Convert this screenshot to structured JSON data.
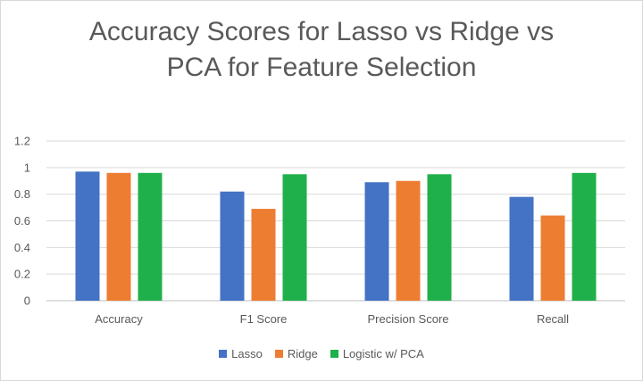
{
  "chart_data": {
    "type": "bar",
    "title_lines": [
      "Accuracy Scores for Lasso vs Ridge vs",
      "PCA for Feature Selection"
    ],
    "categories": [
      "Accuracy",
      "F1 Score",
      "Precision Score",
      "Recall"
    ],
    "series": [
      {
        "name": "Lasso",
        "color": "#4472c4",
        "values": [
          0.97,
          0.82,
          0.89,
          0.78
        ]
      },
      {
        "name": "Ridge",
        "color": "#ed7d31",
        "values": [
          0.96,
          0.69,
          0.9,
          0.64
        ]
      },
      {
        "name": "Logistic w/ PCA",
        "color": "#1fb04b",
        "values": [
          0.96,
          0.95,
          0.95,
          0.96
        ]
      }
    ],
    "ylim": [
      0,
      1.2
    ],
    "yticks": [
      "0",
      "0.2",
      "0.4",
      "0.6",
      "0.8",
      "1",
      "1.2"
    ],
    "grid": true,
    "legend_position": "bottom",
    "xlabel": "",
    "ylabel": ""
  }
}
